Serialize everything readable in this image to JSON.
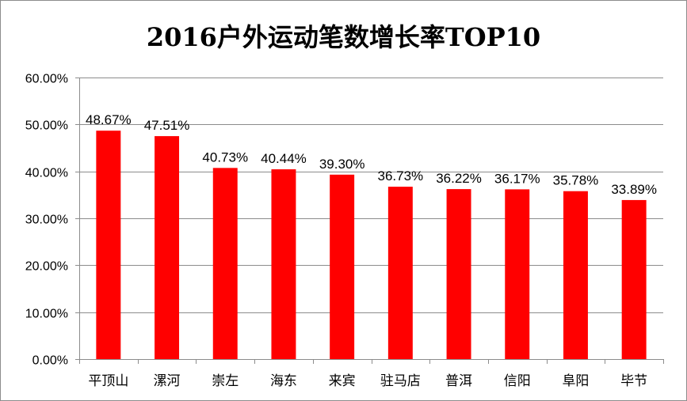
{
  "chart_data": {
    "type": "bar",
    "title": "2016户外运动笔数增长率TOP10",
    "categories": [
      "平顶山",
      "漯河",
      "崇左",
      "海东",
      "来宾",
      "驻马店",
      "普洱",
      "信阳",
      "阜阳",
      "毕节"
    ],
    "values": [
      48.67,
      47.51,
      40.73,
      40.44,
      39.3,
      36.73,
      36.22,
      36.17,
      35.78,
      33.89
    ],
    "data_labels": [
      "48.67%",
      "47.51%",
      "40.73%",
      "40.44%",
      "39.30%",
      "36.73%",
      "36.22%",
      "36.17%",
      "35.78%",
      "33.89%"
    ],
    "ylim": [
      0,
      60
    ],
    "yticks": [
      0,
      10,
      20,
      30,
      40,
      50,
      60
    ],
    "ytick_labels": [
      "0.00%",
      "10.00%",
      "20.00%",
      "30.00%",
      "40.00%",
      "50.00%",
      "60.00%"
    ],
    "xlabel": "",
    "ylabel": "",
    "grid": true,
    "legend": "none",
    "bar_color": "#ff0000",
    "grid_color": "#8c8c8c"
  }
}
